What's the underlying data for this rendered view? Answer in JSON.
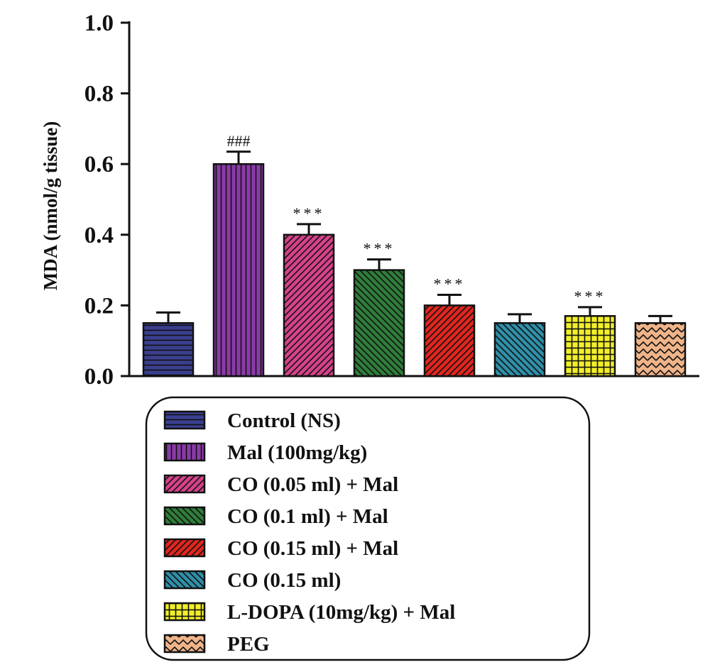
{
  "chart_data": {
    "type": "bar",
    "title": "",
    "xlabel": "",
    "ylabel": "MDA (nmol/g tissue)",
    "ylim": [
      0,
      1.0
    ],
    "yticks": [
      "0.0",
      "0.2",
      "0.4",
      "0.6",
      "0.8",
      "1.0"
    ],
    "grid": false,
    "legend_position": "bottom",
    "categories": [
      "Control (NS)",
      "Mal (100mg/kg)",
      "CO (0.05 ml) + Mal",
      "CO (0.1 ml) + Mal",
      "CO (0.15 ml) + Mal",
      "CO (0.15 ml)",
      "L-DOPA (10mg/kg) + Mal",
      "PEG"
    ],
    "values": [
      0.15,
      0.6,
      0.4,
      0.3,
      0.2,
      0.15,
      0.17,
      0.15
    ],
    "errors": [
      0.03,
      0.035,
      0.03,
      0.03,
      0.03,
      0.025,
      0.025,
      0.02
    ],
    "annotations": [
      "",
      "###",
      "***",
      "***",
      "***",
      "",
      "***",
      ""
    ],
    "colors": [
      "#3b3f8f",
      "#8b3aa8",
      "#d6428a",
      "#2f7d3a",
      "#e0261f",
      "#2f8fa8",
      "#f2ef2a",
      "#f0b48a"
    ],
    "patterns": [
      "horizontal",
      "vertical",
      "diagonal-up",
      "diagonal-down",
      "diagonal-up",
      "diagonal-down",
      "grid",
      "zigzag"
    ]
  }
}
